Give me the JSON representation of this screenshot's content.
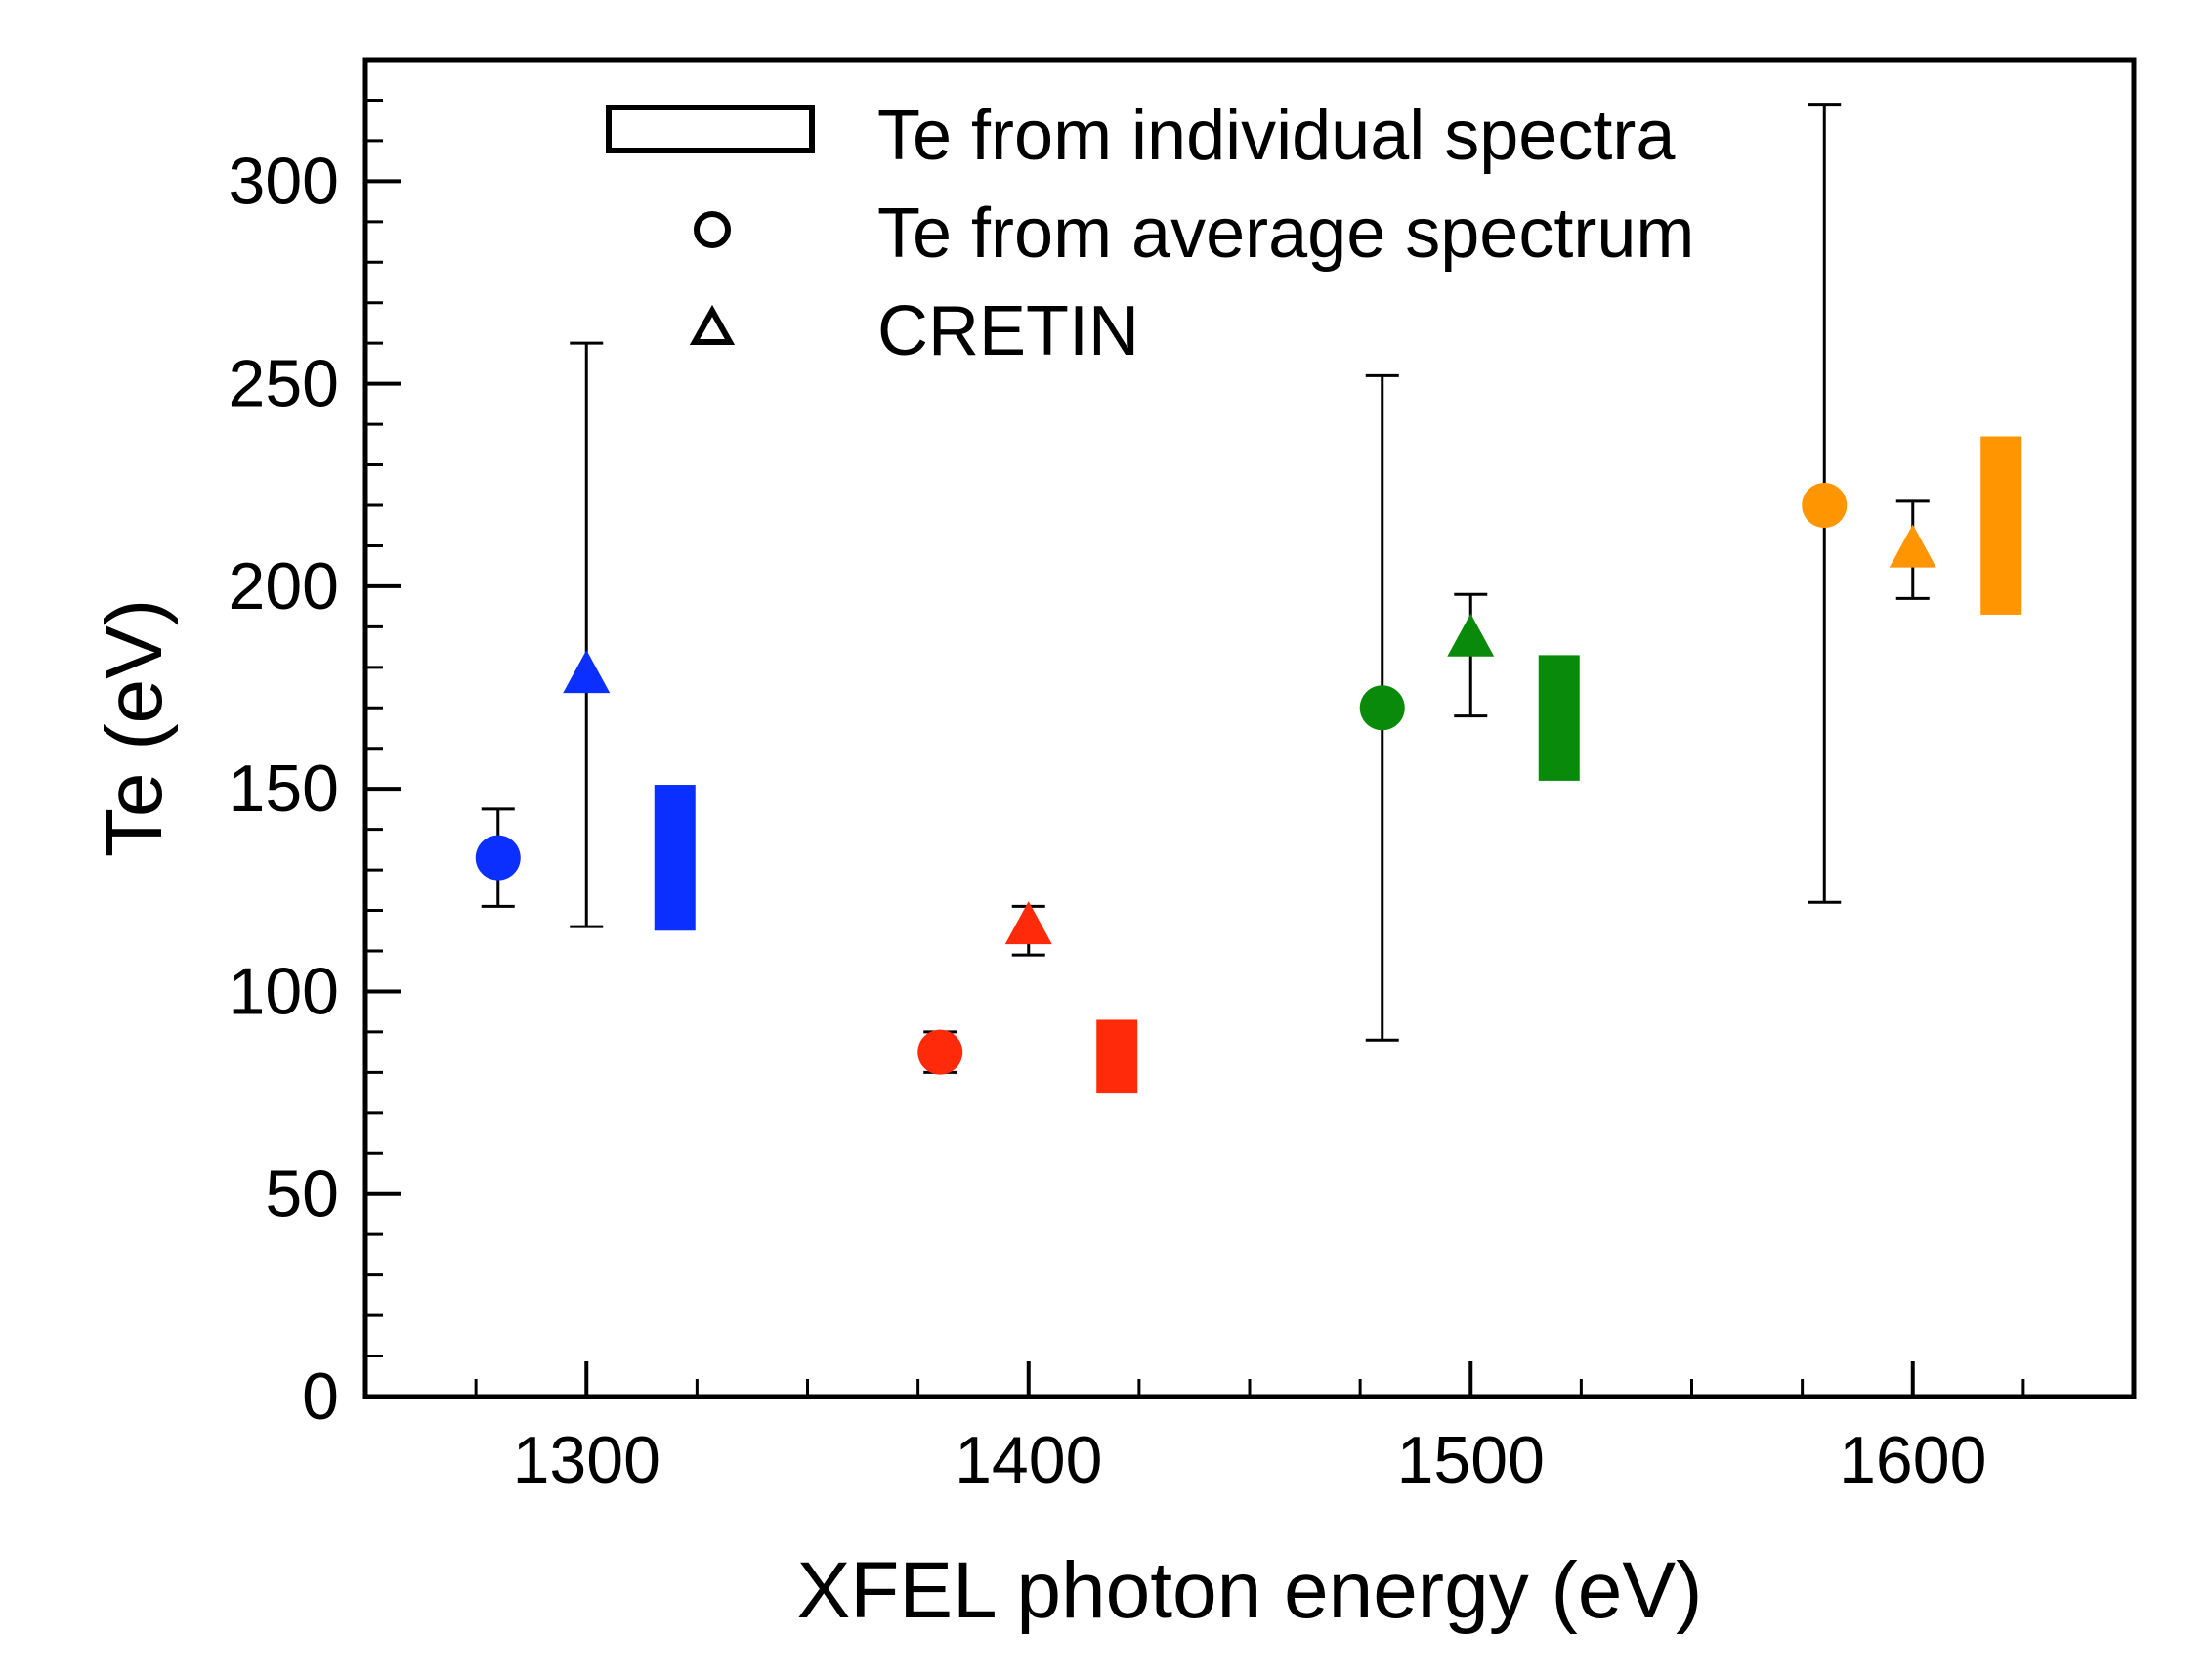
{
  "chart_data": {
    "type": "scatter",
    "title": "",
    "xlabel": "XFEL photon energy (eV)",
    "ylabel": "Te (eV)",
    "xlim": [
      1250,
      1650
    ],
    "ylim": [
      0,
      330
    ],
    "xticks": [
      1300,
      1400,
      1500,
      1600
    ],
    "xtick_labels": [
      "1300",
      "1400",
      "1500",
      "1600"
    ],
    "yticks": [
      0,
      50,
      100,
      150,
      200,
      250,
      300
    ],
    "ytick_labels": [
      "0",
      "50",
      "100",
      "150",
      "200",
      "250",
      "300"
    ],
    "grid": false,
    "legend": {
      "location": "top-center",
      "entries": [
        {
          "label": "Te from individual spectra",
          "marker": "rectangle"
        },
        {
          "label": "Te from average spectrum",
          "marker": "circle"
        },
        {
          "label": "CRETIN",
          "marker": "triangle"
        }
      ]
    },
    "series": [
      {
        "name": "Te from average spectrum",
        "marker": "circle",
        "points": [
          {
            "x": 1280,
            "y": 133,
            "err_low": 121,
            "err_high": 145,
            "color": "#0a2fff"
          },
          {
            "x": 1380,
            "y": 85,
            "err_low": 80,
            "err_high": 90,
            "color": "#ff2a0a"
          },
          {
            "x": 1480,
            "y": 170,
            "err_low": 88,
            "err_high": 252,
            "color": "#0a8a0a"
          },
          {
            "x": 1580,
            "y": 220,
            "err_low": 122,
            "err_high": 319,
            "color": "#ff9500"
          }
        ]
      },
      {
        "name": "CRETIN",
        "marker": "triangle",
        "points": [
          {
            "x": 1300,
            "y": 178,
            "err_low": 116,
            "err_high": 260,
            "color": "#0a2fff"
          },
          {
            "x": 1400,
            "y": 116,
            "err_low": 109,
            "err_high": 121,
            "color": "#ff2a0a"
          },
          {
            "x": 1500,
            "y": 187,
            "err_low": 168,
            "err_high": 198,
            "color": "#0a8a0a"
          },
          {
            "x": 1600,
            "y": 209,
            "err_low": 197,
            "err_high": 221,
            "color": "#ff9500"
          }
        ]
      },
      {
        "name": "Te from individual spectra",
        "marker": "rectangle",
        "points": [
          {
            "x": 1320,
            "y_low": 115,
            "y_high": 151,
            "color": "#0a2fff"
          },
          {
            "x": 1420,
            "y_low": 75,
            "y_high": 93,
            "color": "#ff2a0a"
          },
          {
            "x": 1520,
            "y_low": 152,
            "y_high": 183,
            "color": "#0a8a0a"
          },
          {
            "x": 1620,
            "y_low": 193,
            "y_high": 237,
            "color": "#ff9500"
          }
        ]
      }
    ]
  }
}
